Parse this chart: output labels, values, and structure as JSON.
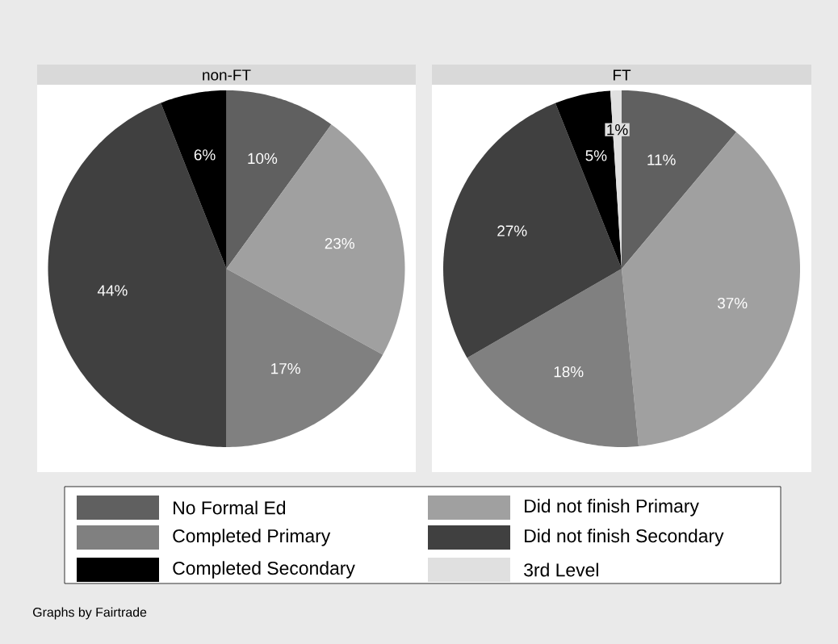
{
  "chart_data": [
    {
      "type": "pie",
      "title": "non-FT",
      "categories": [
        "No Formal Ed",
        "Did not finish Primary",
        "Completed Primary",
        "Did not finish Secondary",
        "Completed Secondary",
        "3rd Level"
      ],
      "values": [
        10,
        23,
        17,
        44,
        6,
        0
      ],
      "value_labels": [
        "10%",
        "23%",
        "17%",
        "44%",
        "6%",
        null
      ],
      "colors": [
        "#606060",
        "#a0a0a0",
        "#808080",
        "#404040",
        "#000000",
        "#e0e0e0"
      ],
      "legend": "bottom",
      "annotations": [
        "Graphs by Fairtrade"
      ]
    },
    {
      "type": "pie",
      "title": "FT",
      "values": [
        11,
        37,
        18,
        27,
        5,
        1
      ],
      "value_labels": [
        "11%",
        "37%",
        "18%",
        "27%",
        "5%",
        "1%"
      ],
      "colors": [
        "#606060",
        "#a0a0a0",
        "#808080",
        "#404040",
        "#000000",
        "#e0e0e0"
      ]
    }
  ]
}
